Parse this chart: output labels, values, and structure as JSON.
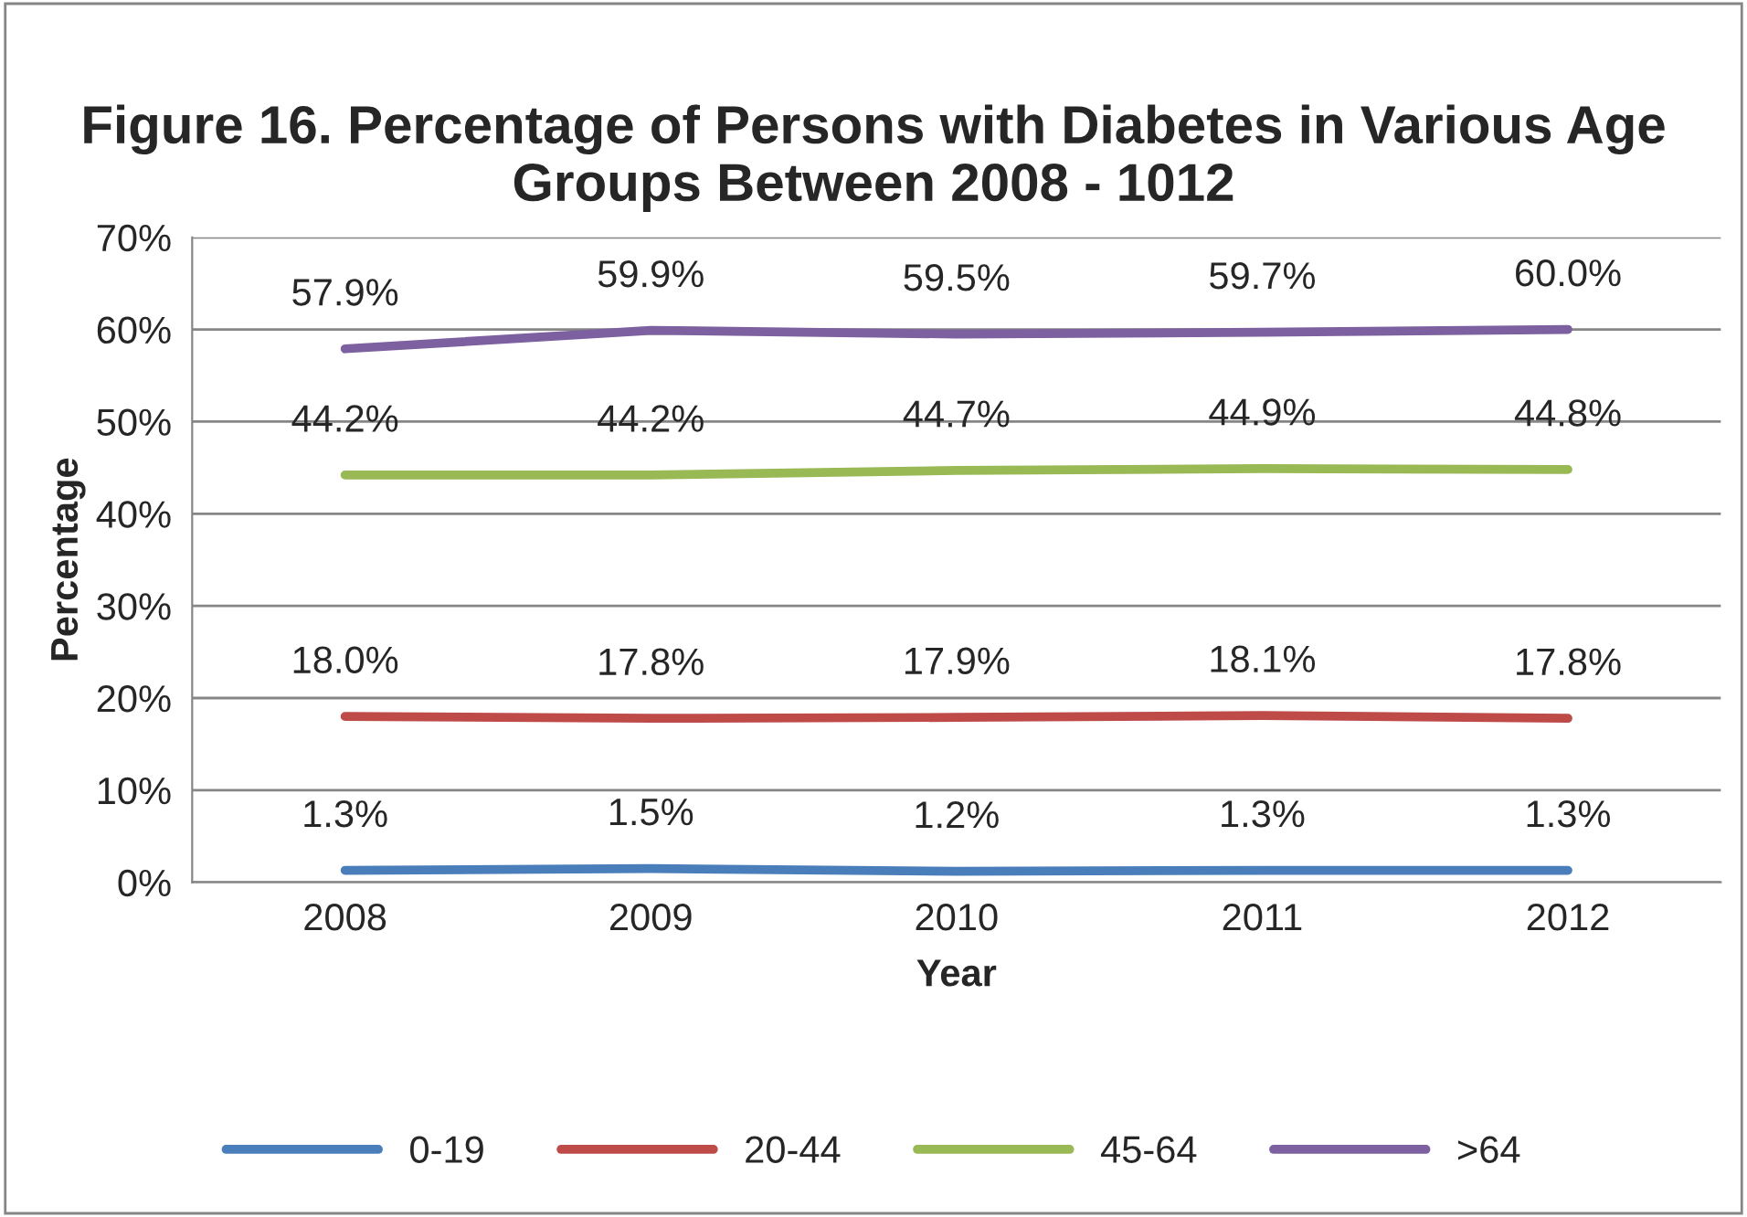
{
  "chart_data": {
    "type": "line",
    "title": "Figure 16. Percentage of Persons with Diabetes in Various Age Groups Between 2008 - 1012",
    "xlabel": "Year",
    "ylabel": "Percentage",
    "categories": [
      "2008",
      "2009",
      "2010",
      "2011",
      "2012"
    ],
    "series": [
      {
        "name": "0-19",
        "color": "#4a7ebb",
        "values": [
          1.3,
          1.5,
          1.2,
          1.3,
          1.3
        ],
        "value_labels": [
          "1.3%",
          "1.5%",
          "1.2%",
          "1.3%",
          "1.3%"
        ]
      },
      {
        "name": "20-44",
        "color": "#be4b48",
        "values": [
          18.0,
          17.8,
          17.9,
          18.1,
          17.8
        ],
        "value_labels": [
          "18.0%",
          "17.8%",
          "17.9%",
          "18.1%",
          "17.8%"
        ]
      },
      {
        "name": "45-64",
        "color": "#98b954",
        "values": [
          44.2,
          44.2,
          44.7,
          44.9,
          44.8
        ],
        "value_labels": [
          "44.2%",
          "44.2%",
          "44.7%",
          "44.9%",
          "44.8%"
        ]
      },
      {
        "name": ">64",
        "color": "#7d60a0",
        "values": [
          57.9,
          59.9,
          59.5,
          59.7,
          60.0
        ],
        "value_labels": [
          "57.9%",
          "59.9%",
          "59.5%",
          "59.7%",
          "60.0%"
        ]
      }
    ],
    "ylim": [
      0,
      70
    ],
    "yticks": [
      {
        "value": 0,
        "label": "0%"
      },
      {
        "value": 10,
        "label": "10%"
      },
      {
        "value": 20,
        "label": "20%"
      },
      {
        "value": 30,
        "label": "30%"
      },
      {
        "value": 40,
        "label": "40%"
      },
      {
        "value": 50,
        "label": "50%"
      },
      {
        "value": 60,
        "label": "60%"
      },
      {
        "value": 70,
        "label": "70%"
      }
    ],
    "grid": "y",
    "legend": "bottom",
    "marker": "none",
    "line_style": "solid"
  }
}
